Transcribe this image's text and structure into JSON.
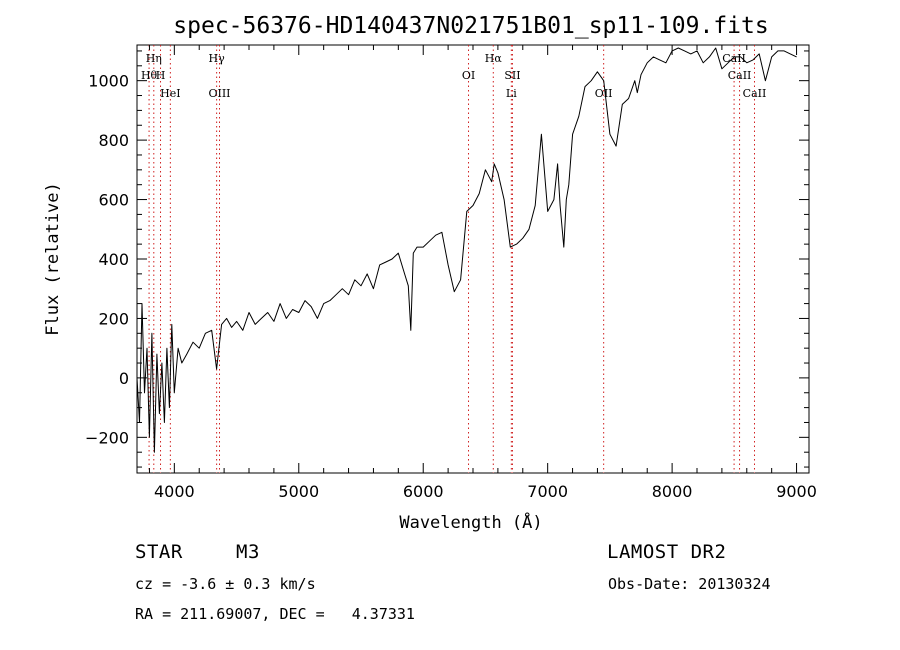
{
  "chart_data": {
    "type": "line",
    "title": "spec-56376-HD140437N021751B01_sp11-109.fits",
    "xlabel": "Wavelength (Å)",
    "ylabel": "Flux (relative)",
    "xlim": [
      3700,
      9100
    ],
    "ylim": [
      -320,
      1120
    ],
    "xticks": [
      4000,
      5000,
      6000,
      7000,
      8000,
      9000
    ],
    "yticks": [
      -200,
      0,
      200,
      400,
      600,
      800,
      1000
    ],
    "grid": false,
    "series": [
      {
        "x": [
          3700,
          3720,
          3740,
          3760,
          3780,
          3800,
          3820,
          3840,
          3860,
          3880,
          3900,
          3920,
          3940,
          3960,
          3980,
          4000,
          4030,
          4060,
          4100,
          4150,
          4200,
          4250,
          4300,
          4340,
          4380,
          4420,
          4460,
          4500,
          4550,
          4600,
          4650,
          4700,
          4750,
          4800,
          4850,
          4900,
          4950,
          5000,
          5050,
          5100,
          5150,
          5200,
          5250,
          5300,
          5350,
          5400,
          5450,
          5500,
          5550,
          5600,
          5650,
          5700,
          5750,
          5800,
          5850,
          5880,
          5900,
          5920,
          5950,
          6000,
          6050,
          6100,
          6150,
          6200,
          6250,
          6300,
          6350,
          6400,
          6450,
          6500,
          6550,
          6570,
          6600,
          6650,
          6700,
          6750,
          6800,
          6850,
          6900,
          6950,
          7000,
          7050,
          7080,
          7100,
          7130,
          7150,
          7170,
          7200,
          7250,
          7300,
          7350,
          7400,
          7450,
          7500,
          7550,
          7600,
          7650,
          7700,
          7720,
          7750,
          7800,
          7850,
          7900,
          7950,
          8000,
          8050,
          8100,
          8150,
          8200,
          8250,
          8300,
          8350,
          8400,
          8450,
          8500,
          8550,
          8600,
          8650,
          8700,
          8750,
          8800,
          8850,
          8900,
          8950,
          9000
        ],
        "y": [
          0,
          -150,
          250,
          -50,
          100,
          -200,
          150,
          -250,
          80,
          -120,
          50,
          -150,
          100,
          -100,
          180,
          -50,
          100,
          50,
          80,
          120,
          100,
          150,
          160,
          30,
          180,
          200,
          170,
          190,
          160,
          220,
          180,
          200,
          220,
          190,
          250,
          200,
          230,
          220,
          260,
          240,
          200,
          250,
          260,
          280,
          300,
          280,
          330,
          310,
          350,
          300,
          380,
          390,
          400,
          420,
          350,
          310,
          160,
          420,
          440,
          440,
          460,
          480,
          490,
          380,
          290,
          330,
          560,
          580,
          620,
          700,
          660,
          720,
          690,
          600,
          440,
          450,
          470,
          500,
          580,
          820,
          560,
          600,
          720,
          580,
          440,
          600,
          650,
          820,
          880,
          980,
          1000,
          1030,
          1000,
          820,
          780,
          920,
          940,
          1000,
          960,
          1020,
          1060,
          1080,
          1070,
          1060,
          1100,
          1110,
          1100,
          1090,
          1100,
          1060,
          1080,
          1110,
          1040,
          1060,
          1080,
          1080,
          1060,
          1070,
          1090,
          1000,
          1080,
          1100,
          1100,
          1090,
          1080
        ]
      }
    ],
    "annotations": [
      {
        "label": "Hη",
        "x": 3835,
        "row": 1
      },
      {
        "label": "Hθ",
        "x": 3797,
        "row": 2
      },
      {
        "label": "H",
        "x": 3889,
        "row": 2
      },
      {
        "label": "HeI",
        "x": 3968,
        "row": 3
      },
      {
        "label": "Hγ",
        "x": 4340,
        "row": 1
      },
      {
        "label": "OIII",
        "x": 4363,
        "row": 3
      },
      {
        "label": "OI",
        "x": 6364,
        "row": 2
      },
      {
        "label": "Hα",
        "x": 6563,
        "row": 1
      },
      {
        "label": "SII",
        "x": 6717,
        "row": 2
      },
      {
        "label": "Li",
        "x": 6708,
        "row": 3
      },
      {
        "label": "OII",
        "x": 7450,
        "row": 3
      },
      {
        "label": "CaII",
        "x": 8498,
        "row": 1
      },
      {
        "label": "CaII",
        "x": 8542,
        "row": 2
      },
      {
        "label": "CaII",
        "x": 8662,
        "row": 3
      }
    ],
    "line_markers": [
      3797,
      3835,
      3889,
      3968,
      4340,
      4363,
      6364,
      6563,
      6708,
      6717,
      7450,
      8498,
      8542,
      8662
    ]
  },
  "info": {
    "object_class": "STAR",
    "subclass": "M3",
    "redshift": "cz = -3.6 ± 0.3 km/s",
    "coordinates": "RA = 211.69007, DEC =   4.37331",
    "survey": "LAMOST DR2",
    "obs_date": "Obs-Date: 20130324"
  }
}
